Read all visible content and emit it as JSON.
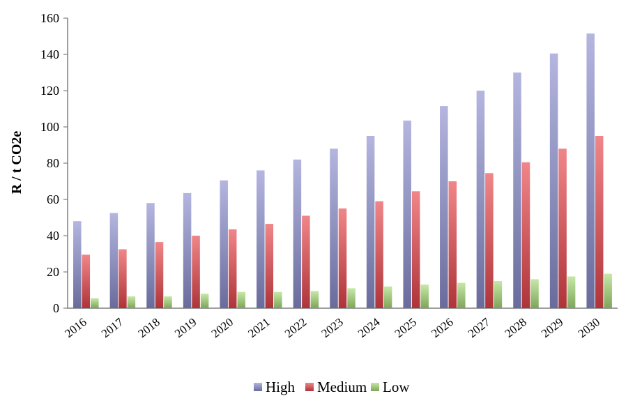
{
  "chart_data": {
    "type": "bar",
    "title": "",
    "xlabel": "",
    "ylabel": "R / t CO2e",
    "ylim": [
      0,
      160
    ],
    "yticks": [
      0,
      20,
      40,
      60,
      80,
      100,
      120,
      140,
      160
    ],
    "grid": false,
    "legend_position": "bottom",
    "categories": [
      "2016",
      "2017",
      "2018",
      "2019",
      "2020",
      "2021",
      "2022",
      "2023",
      "2024",
      "2025",
      "2026",
      "2027",
      "2028",
      "2029",
      "2030"
    ],
    "series": [
      {
        "name": "High",
        "color": "#8c8fd0",
        "values": [
          48,
          52.5,
          58,
          63.5,
          70.5,
          76,
          82,
          88,
          95,
          103.5,
          111.5,
          120,
          130,
          140.5,
          151.5
        ]
      },
      {
        "name": "Medium",
        "color": "#e8454a",
        "values": [
          29.5,
          32.5,
          36.5,
          40,
          43.5,
          46.5,
          51,
          55,
          59,
          64.5,
          70,
          74.5,
          80.5,
          88,
          95
        ]
      },
      {
        "name": "Low",
        "color": "#a8dc78",
        "values": [
          5.5,
          6.5,
          6.5,
          8,
          9,
          9,
          9.5,
          11,
          12,
          13,
          14,
          15,
          16,
          17.5,
          19
        ]
      }
    ]
  }
}
